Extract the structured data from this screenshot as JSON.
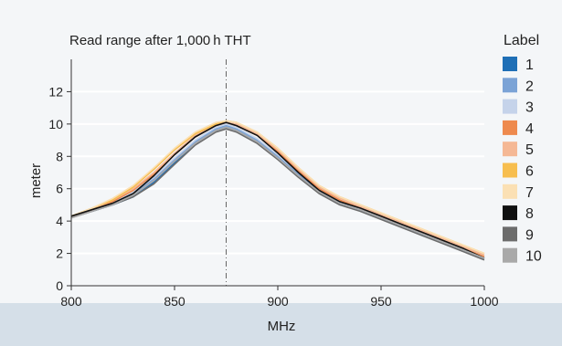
{
  "chart_data": {
    "type": "line",
    "title": "Read range after 1,000 h THT",
    "xlabel": "MHz",
    "ylabel": "meter",
    "xlim": [
      800,
      1000
    ],
    "ylim": [
      0,
      14
    ],
    "xticks": [
      800,
      850,
      900,
      950,
      1000
    ],
    "yticks": [
      0,
      2,
      4,
      6,
      8,
      10,
      12
    ],
    "reference_line_x": 875,
    "grid": "horizontal",
    "legend": {
      "title": "Label",
      "placement": "right"
    },
    "series": [
      {
        "name": "1",
        "color": "#1f6fb6",
        "x": [
          800,
          810,
          820,
          830,
          840,
          850,
          860,
          870,
          875,
          880,
          890,
          900,
          910,
          920,
          930,
          940,
          950,
          960,
          970,
          980,
          990,
          1000
        ],
        "y": [
          4.3,
          4.6,
          5.0,
          5.5,
          6.4,
          7.6,
          8.8,
          9.6,
          9.8,
          9.6,
          8.9,
          7.9,
          6.8,
          5.8,
          5.1,
          4.7,
          4.2,
          3.7,
          3.2,
          2.7,
          2.2,
          1.7
        ]
      },
      {
        "name": "2",
        "color": "#7ba3d6",
        "x": [
          800,
          810,
          820,
          830,
          840,
          850,
          860,
          870,
          875,
          880,
          890,
          900,
          910,
          920,
          930,
          940,
          950,
          960,
          970,
          980,
          990,
          1000
        ],
        "y": [
          4.3,
          4.7,
          5.1,
          5.7,
          6.6,
          7.8,
          8.9,
          9.7,
          9.9,
          9.7,
          9.0,
          8.0,
          6.9,
          5.9,
          5.2,
          4.8,
          4.3,
          3.8,
          3.3,
          2.8,
          2.3,
          1.8
        ]
      },
      {
        "name": "3",
        "color": "#c5d3ea",
        "x": [
          800,
          810,
          820,
          830,
          840,
          850,
          860,
          870,
          875,
          880,
          890,
          900,
          910,
          920,
          930,
          940,
          950,
          960,
          970,
          980,
          990,
          1000
        ],
        "y": [
          4.3,
          4.7,
          5.2,
          5.8,
          6.7,
          7.9,
          9.0,
          9.8,
          10.0,
          9.8,
          9.1,
          8.1,
          7.0,
          6.0,
          5.3,
          4.8,
          4.3,
          3.8,
          3.3,
          2.8,
          2.3,
          1.8
        ]
      },
      {
        "name": "4",
        "color": "#ee8a4e",
        "x": [
          800,
          810,
          820,
          830,
          840,
          850,
          860,
          870,
          875,
          880,
          890,
          900,
          910,
          920,
          930,
          940,
          950,
          960,
          970,
          980,
          990,
          1000
        ],
        "y": [
          4.3,
          4.7,
          5.2,
          5.9,
          6.9,
          8.1,
          9.2,
          9.9,
          10.1,
          9.9,
          9.3,
          8.3,
          7.1,
          6.0,
          5.3,
          4.8,
          4.3,
          3.8,
          3.3,
          2.8,
          2.3,
          1.8
        ]
      },
      {
        "name": "5",
        "color": "#f5b895",
        "x": [
          800,
          810,
          820,
          830,
          840,
          850,
          860,
          870,
          875,
          880,
          890,
          900,
          910,
          920,
          930,
          940,
          950,
          960,
          970,
          980,
          990,
          1000
        ],
        "y": [
          4.3,
          4.7,
          5.3,
          6.0,
          7.0,
          8.2,
          9.3,
          10.0,
          10.1,
          10.0,
          9.4,
          8.4,
          7.2,
          6.1,
          5.4,
          4.9,
          4.4,
          3.9,
          3.4,
          2.9,
          2.4,
          1.9
        ]
      },
      {
        "name": "6",
        "color": "#f7be4f",
        "x": [
          800,
          810,
          820,
          830,
          840,
          850,
          860,
          870,
          875,
          880,
          890,
          900,
          910,
          920,
          930,
          940,
          950,
          960,
          970,
          980,
          990,
          1000
        ],
        "y": [
          4.3,
          4.8,
          5.3,
          6.1,
          7.2,
          8.4,
          9.4,
          10.0,
          10.2,
          10.1,
          9.5,
          8.5,
          7.3,
          6.2,
          5.5,
          5.0,
          4.5,
          4.0,
          3.5,
          3.0,
          2.5,
          2.0
        ]
      },
      {
        "name": "7",
        "color": "#fbe0b4",
        "x": [
          800,
          810,
          820,
          830,
          840,
          850,
          860,
          870,
          875,
          880,
          890,
          900,
          910,
          920,
          930,
          940,
          950,
          960,
          970,
          980,
          990,
          1000
        ],
        "y": [
          4.3,
          4.8,
          5.4,
          6.2,
          7.3,
          8.5,
          9.5,
          10.1,
          10.2,
          10.1,
          9.5,
          8.5,
          7.3,
          6.2,
          5.5,
          5.0,
          4.5,
          4.0,
          3.5,
          3.0,
          2.5,
          2.0
        ]
      },
      {
        "name": "8",
        "color": "#111111",
        "x": [
          800,
          810,
          820,
          830,
          840,
          850,
          860,
          870,
          875,
          880,
          890,
          900,
          910,
          920,
          930,
          940,
          950,
          960,
          970,
          980,
          990,
          1000
        ],
        "y": [
          4.3,
          4.7,
          5.1,
          5.7,
          6.8,
          8.1,
          9.2,
          9.9,
          10.1,
          9.9,
          9.3,
          8.2,
          7.0,
          5.9,
          5.2,
          4.8,
          4.3,
          3.8,
          3.3,
          2.8,
          2.3,
          1.7
        ]
      },
      {
        "name": "9",
        "color": "#6c6c6c",
        "x": [
          800,
          810,
          820,
          830,
          840,
          850,
          860,
          870,
          875,
          880,
          890,
          900,
          910,
          920,
          930,
          940,
          950,
          960,
          970,
          980,
          990,
          1000
        ],
        "y": [
          4.2,
          4.6,
          5.0,
          5.5,
          6.3,
          7.5,
          8.7,
          9.5,
          9.7,
          9.5,
          8.8,
          7.8,
          6.7,
          5.7,
          5.0,
          4.6,
          4.1,
          3.6,
          3.1,
          2.6,
          2.1,
          1.6
        ]
      },
      {
        "name": "10",
        "color": "#a9a9a9",
        "x": [
          800,
          810,
          820,
          830,
          840,
          850,
          860,
          870,
          875,
          880,
          890,
          900,
          910,
          920,
          930,
          940,
          950,
          960,
          970,
          980,
          990,
          1000
        ],
        "y": [
          4.2,
          4.6,
          5.0,
          5.6,
          6.5,
          7.7,
          8.8,
          9.6,
          9.8,
          9.6,
          8.9,
          7.9,
          6.8,
          5.8,
          5.1,
          4.7,
          4.2,
          3.7,
          3.2,
          2.7,
          2.2,
          1.7
        ]
      }
    ]
  }
}
